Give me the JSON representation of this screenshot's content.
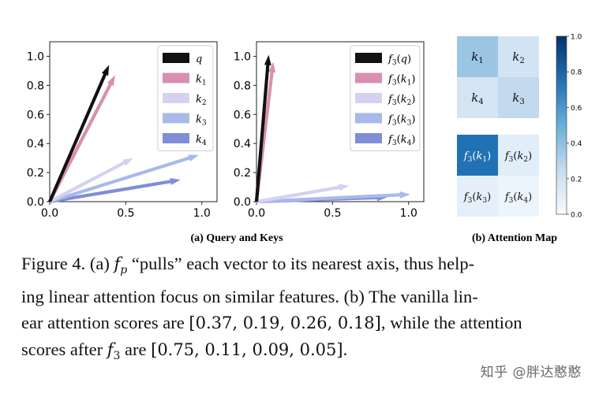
{
  "chart_data": [
    {
      "type": "vector",
      "subtitle": "(a) Query and Keys",
      "xlim": [
        0.0,
        1.1
      ],
      "ylim": [
        0.0,
        1.1
      ],
      "xticks": [
        "0.0",
        "0.5",
        "1.0"
      ],
      "yticks": [
        "0.0",
        "0.2",
        "0.4",
        "0.6",
        "0.8",
        "1.0"
      ],
      "legend_position": "top-right",
      "series": [
        {
          "name": "q",
          "color": "#111111",
          "x": 0.39,
          "y": 0.94
        },
        {
          "name": "k1",
          "color": "#d98fae",
          "x": 0.43,
          "y": 0.87
        },
        {
          "name": "k2",
          "color": "#d4d2f2",
          "x": 0.55,
          "y": 0.3
        },
        {
          "name": "k3",
          "color": "#a8b9ea",
          "x": 0.98,
          "y": 0.32
        },
        {
          "name": "k4",
          "color": "#7f8ed6",
          "x": 0.86,
          "y": 0.15
        }
      ]
    },
    {
      "type": "vector",
      "xlim": [
        0.0,
        1.1
      ],
      "ylim": [
        0.0,
        1.1
      ],
      "xticks": [
        "0.0",
        "0.5",
        "1.0"
      ],
      "yticks": [
        "0.0",
        "0.2",
        "0.4",
        "0.6",
        "0.8",
        "1.0"
      ],
      "legend_position": "top-right",
      "series": [
        {
          "name": "f3(q)",
          "color": "#111111",
          "x": 0.08,
          "y": 1.01
        },
        {
          "name": "f3(k1)",
          "color": "#d98fae",
          "x": 0.11,
          "y": 0.96
        },
        {
          "name": "f3(k2)",
          "color": "#d4d2f2",
          "x": 0.61,
          "y": 0.11
        },
        {
          "name": "f3(k3)",
          "color": "#a8b9ea",
          "x": 1.01,
          "y": 0.05
        },
        {
          "name": "f3(k4)",
          "color": "#7f8ed6",
          "x": 0.86,
          "y": 0.03
        }
      ]
    },
    {
      "type": "heatmap",
      "subtitle": "(b) Attention Map",
      "colorbar": {
        "min": 0.0,
        "max": 1.0,
        "ticks": [
          "0.0",
          "0.2",
          "0.4",
          "0.6",
          "0.8",
          "1.0"
        ],
        "colormap": "Blues"
      },
      "maps": [
        {
          "cells": [
            {
              "label_base": "k",
              "sub": "1",
              "value": 0.37
            },
            {
              "label_base": "k",
              "sub": "2",
              "value": 0.19
            },
            {
              "label_base": "k",
              "sub": "4",
              "value": 0.18
            },
            {
              "label_base": "k",
              "sub": "3",
              "value": 0.26
            }
          ]
        },
        {
          "cells": [
            {
              "label_base": "k",
              "sub": "1",
              "value": 0.75
            },
            {
              "label_base": "k",
              "sub": "2",
              "value": 0.11
            },
            {
              "label_base": "k",
              "sub": "3",
              "value": 0.09
            },
            {
              "label_base": "k",
              "sub": "4",
              "value": 0.05
            }
          ]
        }
      ]
    }
  ],
  "caption": {
    "line1": "Figure 4. (a) fp “pulls” each vector to its nearest axis, thus help-",
    "line2": "ing linear attention focus on similar features. (b) The vanilla lin-",
    "line3": "ear attention scores are [0.37, 0.19, 0.26, 0.18], while the attention",
    "line4": "scores after f3 are [0.75, 0.11, 0.09, 0.05]."
  },
  "caption_parts": {
    "l1a": "Figure 4. (a) ",
    "l1_f": "f",
    "l1_sub": "p",
    "l1b": " “pulls” each vector to its nearest axis, thus help-",
    "l2": "ing linear attention focus on similar features. (b) The vanilla lin-",
    "l3a": "ear attention scores are ",
    "l3_vec": "[0.37, 0.19, 0.26, 0.18]",
    "l3b": ", while the attention",
    "l4a": "scores after ",
    "l4_f": "f",
    "l4_sub": "3",
    "l4b": " are ",
    "l4_vec": "[0.75, 0.11, 0.09, 0.05]",
    "l4c": "."
  },
  "watermark": "知乎 @胖达憨憨"
}
